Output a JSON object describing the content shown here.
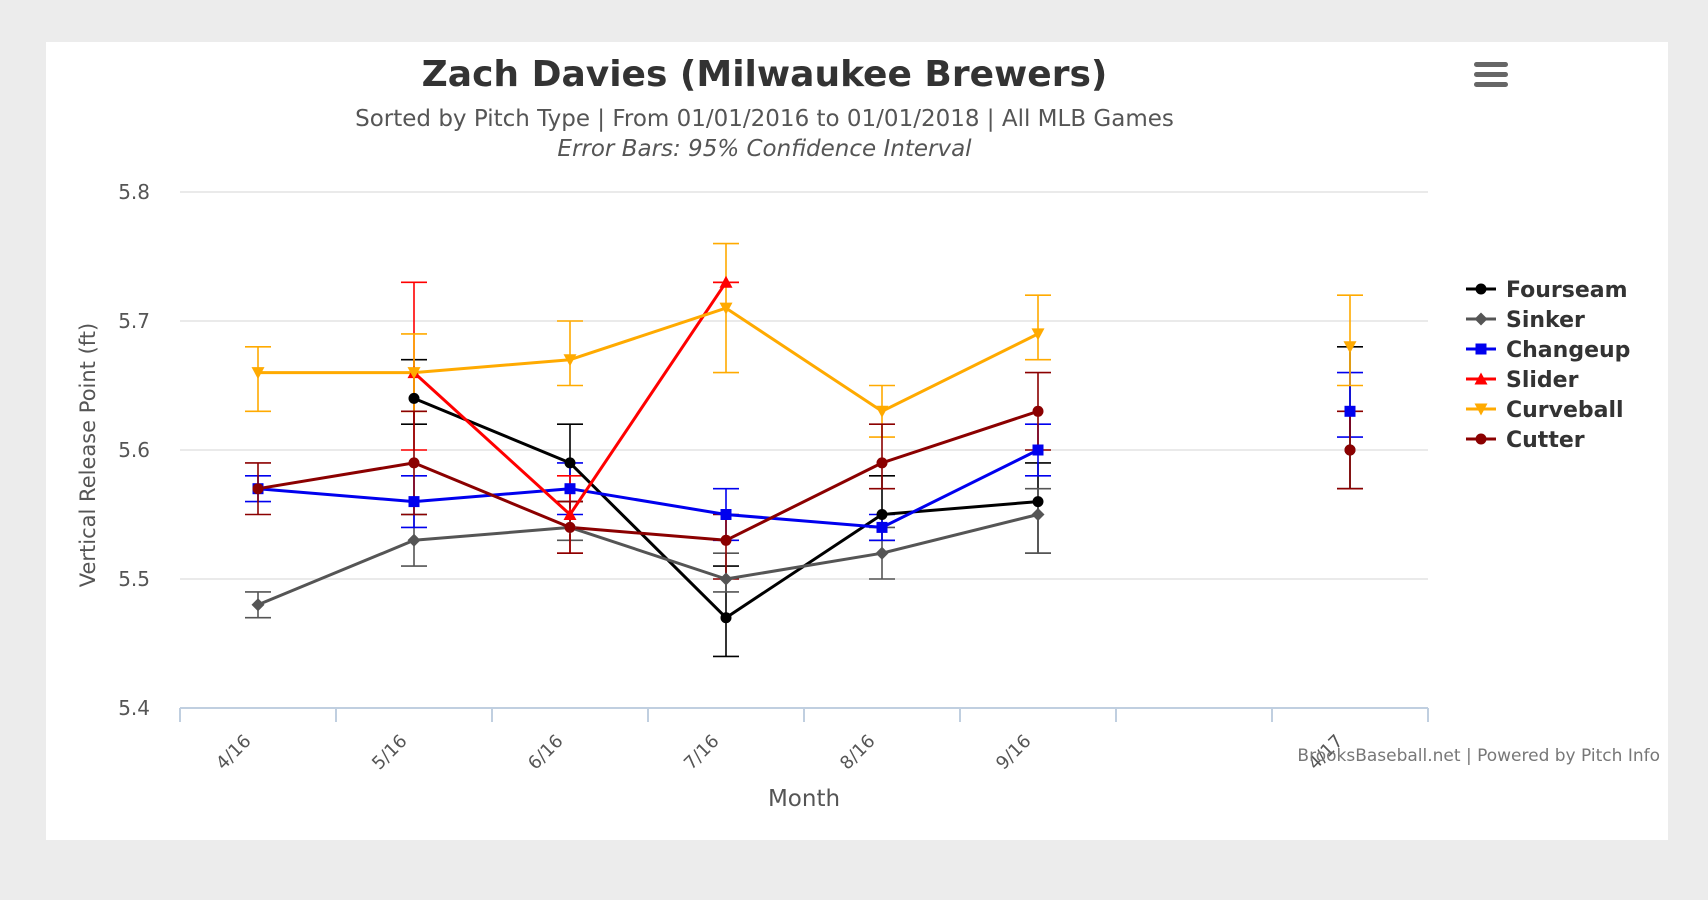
{
  "header": {
    "title": "Zach Davies (Milwaukee Brewers)",
    "subtitle": "Sorted by Pitch Type | From 01/01/2016 to 01/01/2018 | All MLB Games",
    "note": "Error Bars: 95% Confidence Interval"
  },
  "footer": {
    "credit": "BrooksBaseball.net | Powered by Pitch Info"
  },
  "chart_data": {
    "type": "line",
    "xlabel": "Month",
    "ylabel": "Vertical Release Point (ft)",
    "ylim": [
      5.4,
      5.8
    ],
    "yticks": [
      "5.4",
      "5.5",
      "5.6",
      "5.7",
      "5.8"
    ],
    "categories": [
      "4/16",
      "5/16",
      "6/16",
      "7/16",
      "8/16",
      "9/16",
      "",
      "4/17"
    ],
    "category_labels_shown": [
      "4/16",
      "5/16",
      "6/16",
      "7/16",
      "8/16",
      "9/16",
      "4/17"
    ],
    "grid": true,
    "legend_position": "right",
    "series": [
      {
        "name": "Fourseam",
        "color": "#000000",
        "marker": "circle",
        "values": [
          null,
          5.64,
          5.59,
          5.47,
          5.55,
          5.56,
          null,
          5.6
        ],
        "error_low": [
          null,
          5.62,
          5.56,
          5.44,
          5.53,
          5.52,
          null,
          5.57
        ],
        "error_high": [
          null,
          5.67,
          5.62,
          5.51,
          5.58,
          5.59,
          null,
          5.68
        ]
      },
      {
        "name": "Sinker",
        "color": "#555555",
        "marker": "diamond",
        "values": [
          5.48,
          5.53,
          5.54,
          5.5,
          5.52,
          5.55,
          null,
          null
        ],
        "error_low": [
          5.47,
          5.51,
          5.53,
          5.49,
          5.5,
          5.52,
          null,
          null
        ],
        "error_high": [
          5.49,
          5.55,
          5.56,
          5.52,
          5.54,
          5.57,
          null,
          null
        ]
      },
      {
        "name": "Changeup",
        "color": "#0000ee",
        "marker": "square",
        "values": [
          5.57,
          5.56,
          5.57,
          5.55,
          5.54,
          5.6,
          null,
          5.63
        ],
        "error_low": [
          5.56,
          5.54,
          5.55,
          5.53,
          5.53,
          5.58,
          null,
          5.61
        ],
        "error_high": [
          5.58,
          5.58,
          5.59,
          5.57,
          5.55,
          5.62,
          null,
          5.66
        ]
      },
      {
        "name": "Slider",
        "color": "#ff0000",
        "marker": "triangle",
        "values": [
          null,
          5.66,
          5.55,
          5.73,
          null,
          null,
          null,
          null
        ],
        "error_low": [
          null,
          5.6,
          5.52,
          5.73,
          null,
          null,
          null,
          null
        ],
        "error_high": [
          null,
          5.73,
          5.58,
          5.73,
          null,
          null,
          null,
          null
        ]
      },
      {
        "name": "Curveball",
        "color": "#ffaa00",
        "marker": "triangle-down",
        "values": [
          5.66,
          5.66,
          5.67,
          5.71,
          5.63,
          5.69,
          null,
          5.68
        ],
        "error_low": [
          5.63,
          5.63,
          5.65,
          5.66,
          5.61,
          5.67,
          null,
          5.65
        ],
        "error_high": [
          5.68,
          5.69,
          5.7,
          5.76,
          5.65,
          5.72,
          null,
          5.72
        ]
      },
      {
        "name": "Cutter",
        "color": "#8b0000",
        "marker": "circle",
        "values": [
          5.57,
          5.59,
          5.54,
          5.53,
          5.59,
          5.63,
          null,
          5.6
        ],
        "error_low": [
          5.55,
          5.55,
          5.52,
          5.5,
          5.57,
          5.6,
          null,
          5.57
        ],
        "error_high": [
          5.59,
          5.63,
          5.56,
          5.55,
          5.62,
          5.66,
          null,
          5.63
        ]
      }
    ]
  }
}
